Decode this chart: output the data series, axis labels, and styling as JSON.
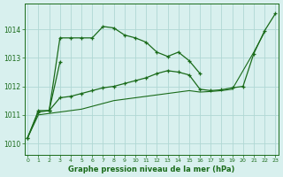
{
  "x_all": [
    0,
    1,
    2,
    3,
    4,
    5,
    6,
    7,
    8,
    9,
    10,
    11,
    12,
    13,
    14,
    15,
    16,
    17,
    18,
    19,
    20,
    21,
    22,
    23
  ],
  "line_peaky": [
    1010.2,
    1011.15,
    1011.15,
    1013.7,
    1013.7,
    1013.7,
    1013.7,
    1014.1,
    1014.05,
    1013.8,
    1013.7,
    1013.55,
    1013.2,
    1013.05,
    1013.2,
    1012.9,
    1012.45,
    null,
    null,
    null,
    null,
    null,
    null,
    null
  ],
  "line_steep_up": [
    null,
    null,
    1011.15,
    1012.85,
    null,
    null,
    null,
    null,
    null,
    null,
    null,
    null,
    null,
    null,
    null,
    null,
    null,
    null,
    null,
    null,
    null,
    null,
    null,
    null
  ],
  "line_main": [
    1010.2,
    1011.1,
    1011.15,
    1011.6,
    1011.65,
    1011.75,
    1011.85,
    1011.95,
    1012.0,
    1012.1,
    1012.2,
    1012.3,
    1012.45,
    1012.55,
    1012.5,
    1012.4,
    1011.9,
    1011.85,
    1011.88,
    1011.95,
    1012.0,
    1013.15,
    1013.95,
    1014.55
  ],
  "line_lower": [
    1010.2,
    1011.0,
    1011.05,
    1011.1,
    1011.15,
    1011.2,
    1011.3,
    1011.4,
    1011.5,
    1011.55,
    1011.6,
    1011.65,
    1011.7,
    1011.75,
    1011.8,
    1011.85,
    1011.8,
    1011.82,
    1011.85,
    1011.9,
    1012.55,
    1013.2,
    1013.9,
    null
  ],
  "bg_color": "#d8f0ee",
  "grid_color": "#b0d8d4",
  "line_color": "#1a6b1a",
  "xlabel": "Graphe pression niveau de la mer (hPa)",
  "yticks": [
    1010,
    1011,
    1012,
    1013,
    1014
  ],
  "xticks": [
    0,
    1,
    2,
    3,
    4,
    5,
    6,
    7,
    8,
    9,
    10,
    11,
    12,
    13,
    14,
    15,
    16,
    17,
    18,
    19,
    20,
    21,
    22,
    23
  ],
  "ylim": [
    1009.6,
    1014.9
  ],
  "xlim": [
    -0.3,
    23.3
  ]
}
